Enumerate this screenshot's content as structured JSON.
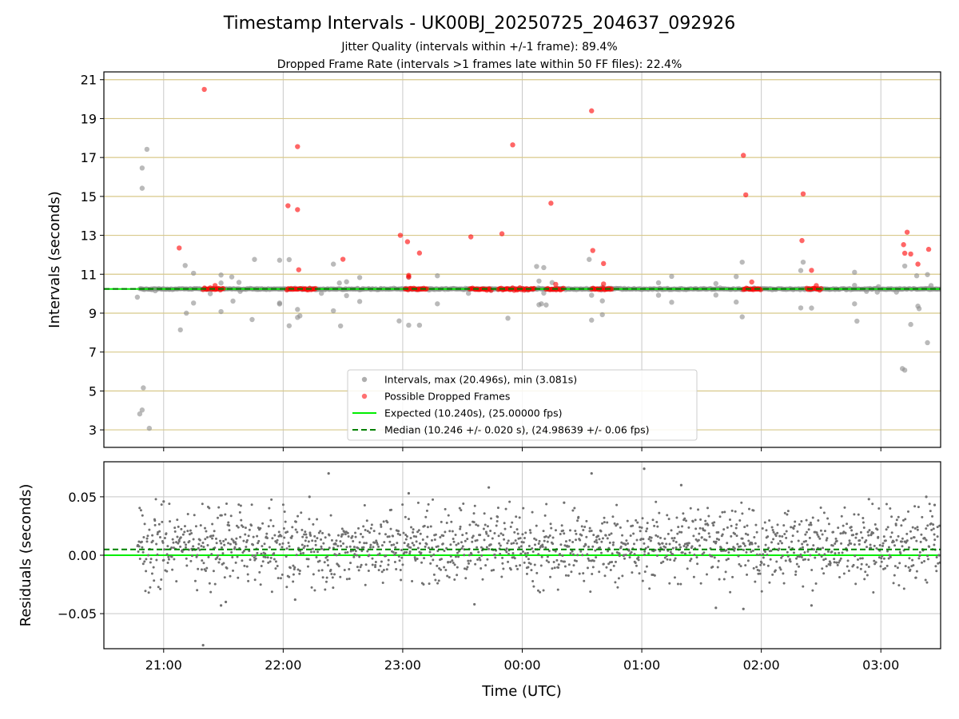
{
  "chart_data": [
    {
      "type": "scatter",
      "title": "Timestamp Intervals - UK00BJ_20250725_204637_092926",
      "subtitle_lines": [
        "Jitter Quality (intervals within +/-1 frame): 89.4%",
        "Dropped Frame Rate (intervals >1 frames late within 50 FF files): 22.4%"
      ],
      "xlabel": "",
      "ylabel": "Intervals (seconds)",
      "x_unit": "time UTC (hours since 20:00)",
      "xlim": [
        0.5,
        7.5
      ],
      "ylim": [
        2.1,
        21.4
      ],
      "y_ticks": [
        3,
        5,
        7,
        9,
        11,
        13,
        15,
        17,
        19,
        21
      ],
      "y_tick_labels": [
        "3",
        "5",
        "7",
        "9",
        "11",
        "13",
        "15",
        "17",
        "19",
        "21"
      ],
      "x_ticks": [
        1,
        2,
        3,
        4,
        5,
        6,
        7
      ],
      "x_tick_labels": [
        "21:00",
        "22:00",
        "23:00",
        "00:00",
        "01:00",
        "02:00",
        "03:00"
      ],
      "horizontal_gridlines": [
        3,
        5,
        7,
        9,
        11,
        13,
        15,
        17,
        19,
        21
      ],
      "grid": true,
      "legend_position": "bottom-center",
      "legend": [
        {
          "label": "Intervals, max (20.496s), min (3.081s)",
          "kind": "marker",
          "color": "#9a9a9a"
        },
        {
          "label": "Possible Dropped Frames",
          "kind": "marker",
          "color": "#ff4d4d"
        },
        {
          "label": "Expected (10.240s), (25.00000 fps)",
          "kind": "solid",
          "color": "#00ee00"
        },
        {
          "label": "Median (10.246 +/- 0.020 s), (24.98639 +/- 0.06 fps)",
          "kind": "dashed",
          "color": "#008000"
        }
      ],
      "expected_interval": 10.24,
      "median_interval": 10.246,
      "baseline_band": {
        "x_start": 0.8,
        "x_end": 7.5,
        "y": 10.24
      },
      "series": [
        {
          "name": "Intervals, max (20.496s), min (3.081s)",
          "color": "#8c8c8c",
          "points": [
            [
              0.78,
              9.82
            ],
            [
              0.8,
              3.82
            ],
            [
              0.82,
              4.02
            ],
            [
              0.82,
              16.46
            ],
            [
              0.82,
              15.42
            ],
            [
              0.83,
              5.16
            ],
            [
              0.86,
              17.42
            ],
            [
              0.88,
              3.08
            ],
            [
              0.93,
              10.15
            ],
            [
              1.14,
              8.14
            ],
            [
              1.18,
              11.45
            ],
            [
              1.19,
              9.0
            ],
            [
              1.25,
              11.05
            ],
            [
              1.25,
              9.52
            ],
            [
              1.39,
              10.0
            ],
            [
              1.48,
              10.55
            ],
            [
              1.48,
              9.08
            ],
            [
              1.48,
              10.96
            ],
            [
              1.57,
              10.86
            ],
            [
              1.58,
              9.62
            ],
            [
              1.63,
              10.58
            ],
            [
              1.64,
              10.12
            ],
            [
              1.74,
              8.67
            ],
            [
              1.76,
              11.76
            ],
            [
              1.97,
              11.72
            ],
            [
              1.97,
              9.47
            ],
            [
              1.97,
              9.52
            ],
            [
              2.05,
              11.75
            ],
            [
              2.05,
              8.35
            ],
            [
              2.12,
              9.19
            ],
            [
              2.12,
              8.78
            ],
            [
              2.14,
              8.86
            ],
            [
              2.32,
              10.02
            ],
            [
              2.42,
              11.52
            ],
            [
              2.42,
              9.12
            ],
            [
              2.47,
              10.55
            ],
            [
              2.48,
              8.34
            ],
            [
              2.53,
              10.61
            ],
            [
              2.53,
              9.9
            ],
            [
              2.64,
              10.83
            ],
            [
              2.64,
              9.6
            ],
            [
              2.97,
              8.6
            ],
            [
              3.05,
              10.84
            ],
            [
              3.05,
              8.38
            ],
            [
              3.14,
              8.38
            ],
            [
              3.29,
              10.92
            ],
            [
              3.29,
              9.48
            ],
            [
              3.55,
              10.02
            ],
            [
              3.88,
              8.74
            ],
            [
              4.12,
              11.4
            ],
            [
              4.14,
              9.43
            ],
            [
              4.14,
              10.65
            ],
            [
              4.16,
              9.48
            ],
            [
              4.18,
              11.34
            ],
            [
              4.18,
              10.03
            ],
            [
              4.2,
              9.42
            ],
            [
              4.25,
              10.23
            ],
            [
              4.25,
              10.57
            ],
            [
              4.56,
              11.76
            ],
            [
              4.58,
              8.64
            ],
            [
              4.58,
              9.92
            ],
            [
              4.67,
              10.33
            ],
            [
              4.67,
              9.63
            ],
            [
              4.67,
              8.92
            ],
            [
              5.14,
              10.56
            ],
            [
              5.14,
              9.92
            ],
            [
              5.25,
              10.89
            ],
            [
              5.25,
              9.56
            ],
            [
              5.62,
              10.52
            ],
            [
              5.62,
              9.93
            ],
            [
              5.79,
              10.88
            ],
            [
              5.79,
              9.57
            ],
            [
              5.84,
              11.62
            ],
            [
              5.84,
              8.81
            ],
            [
              6.33,
              11.19
            ],
            [
              6.33,
              9.27
            ],
            [
              6.35,
              11.62
            ],
            [
              6.42,
              9.26
            ],
            [
              6.78,
              11.1
            ],
            [
              6.78,
              9.48
            ],
            [
              6.78,
              10.43
            ],
            [
              6.8,
              8.59
            ],
            [
              6.88,
              10.12
            ],
            [
              6.97,
              10.08
            ],
            [
              6.98,
              10.36
            ],
            [
              7.13,
              10.08
            ],
            [
              7.18,
              6.15
            ],
            [
              7.2,
              6.07
            ],
            [
              7.2,
              11.42
            ],
            [
              7.25,
              8.42
            ],
            [
              7.3,
              10.92
            ],
            [
              7.31,
              9.36
            ],
            [
              7.32,
              9.23
            ],
            [
              7.39,
              10.98
            ],
            [
              7.39,
              7.48
            ],
            [
              7.42,
              10.42
            ]
          ]
        },
        {
          "name": "Possible Dropped Frames",
          "color": "#ff0000",
          "points": [
            [
              1.13,
              12.35
            ],
            [
              1.34,
              20.5
            ],
            [
              2.04,
              14.52
            ],
            [
              2.12,
              17.56
            ],
            [
              2.12,
              14.32
            ],
            [
              2.13,
              11.23
            ],
            [
              2.5,
              11.77
            ],
            [
              2.98,
              13.0
            ],
            [
              3.04,
              12.67
            ],
            [
              3.05,
              10.94
            ],
            [
              3.05,
              10.86
            ],
            [
              3.14,
              12.09
            ],
            [
              3.57,
              12.92
            ],
            [
              3.83,
              13.08
            ],
            [
              3.92,
              17.65
            ],
            [
              4.24,
              14.65
            ],
            [
              4.28,
              10.48
            ],
            [
              4.58,
              19.4
            ],
            [
              4.59,
              12.22
            ],
            [
              4.68,
              11.55
            ],
            [
              4.68,
              10.5
            ],
            [
              5.85,
              17.11
            ],
            [
              5.87,
              15.08
            ],
            [
              5.92,
              10.6
            ],
            [
              6.35,
              15.13
            ],
            [
              6.34,
              12.73
            ],
            [
              6.42,
              11.2
            ],
            [
              6.46,
              10.42
            ],
            [
              7.19,
              12.52
            ],
            [
              7.2,
              12.08
            ],
            [
              7.22,
              13.16
            ],
            [
              7.25,
              12.04
            ],
            [
              7.31,
              11.52
            ],
            [
              7.4,
              12.28
            ],
            [
              1.43,
              10.42
            ]
          ],
          "baseline_clusters": [
            [
              1.33,
              1.5
            ],
            [
              2.03,
              2.28
            ],
            [
              3.02,
              3.2
            ],
            [
              3.56,
              3.74
            ],
            [
              3.8,
              4.1
            ],
            [
              4.2,
              4.35
            ],
            [
              4.58,
              4.75
            ],
            [
              5.85,
              6.0
            ],
            [
              6.38,
              6.5
            ]
          ]
        }
      ]
    },
    {
      "type": "scatter",
      "title": "",
      "xlabel": "Time (UTC)",
      "ylabel": "Residuals (seconds)",
      "xlim": [
        0.5,
        7.5
      ],
      "ylim": [
        -0.08,
        0.08
      ],
      "y_ticks": [
        -0.05,
        0.0,
        0.05
      ],
      "y_tick_labels": [
        "−0.05",
        "0.00",
        "0.05"
      ],
      "x_ticks": [
        1,
        2,
        3,
        4,
        5,
        6,
        7
      ],
      "x_tick_labels": [
        "21:00",
        "22:00",
        "23:00",
        "00:00",
        "01:00",
        "02:00",
        "03:00"
      ],
      "grid": true,
      "expected_residual": 0.0,
      "median_residual": 0.005,
      "residual_cloud": {
        "x_start": 0.78,
        "x_end": 7.5,
        "approx_points": 1700,
        "typical_range": [
          -0.03,
          0.045
        ]
      },
      "series": [
        {
          "name": "",
          "color": "#707070",
          "points": [
            [
              1.33,
              -0.077
            ],
            [
              1.48,
              -0.043
            ],
            [
              1.52,
              -0.04
            ],
            [
              2.1,
              -0.038
            ],
            [
              2.22,
              0.05
            ],
            [
              2.38,
              0.07
            ],
            [
              3.05,
              0.053
            ],
            [
              3.72,
              0.058
            ],
            [
              4.35,
              0.045
            ],
            [
              4.58,
              0.07
            ],
            [
              5.02,
              0.074
            ],
            [
              5.33,
              0.06
            ],
            [
              6.9,
              0.048
            ],
            [
              7.38,
              0.05
            ],
            [
              7.45,
              0.043
            ],
            [
              3.6,
              -0.042
            ],
            [
              5.62,
              -0.045
            ],
            [
              5.85,
              -0.046
            ],
            [
              6.42,
              -0.043
            ],
            [
              1.0,
              0.046
            ]
          ]
        }
      ]
    }
  ]
}
